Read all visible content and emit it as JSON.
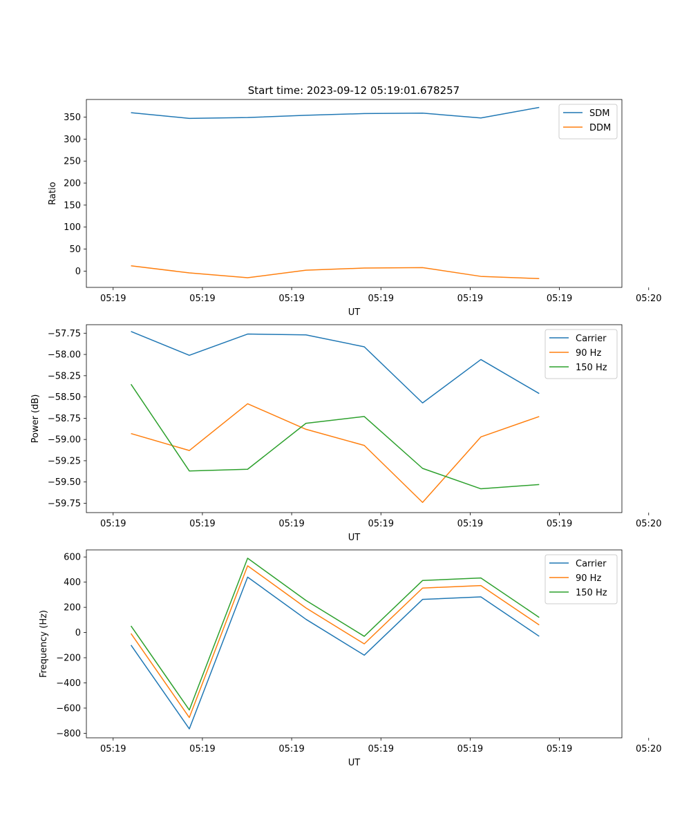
{
  "figure": {
    "title": "Start time: 2023-09-12 05:19:01.678257"
  },
  "colors": {
    "blue": "#1f77b4",
    "orange": "#ff7f0e",
    "green": "#2ca02c",
    "axis": "#000000",
    "legend_border": "#cccccc"
  },
  "chart_data": [
    {
      "type": "line",
      "title": "Start time: 2023-09-12 05:19:01.678257",
      "xlabel": "UT",
      "ylabel": "Ratio",
      "xlim": [
        -0.45,
        8.55
      ],
      "ylim": [
        -37,
        390
      ],
      "x": [
        0.3,
        1.28,
        2.26,
        3.24,
        4.22,
        5.2,
        6.18,
        7.16
      ],
      "xticks": [
        0,
        1.5,
        3,
        4.5,
        6,
        7.5,
        9
      ],
      "xtick_labels": [
        "05:19",
        "05:19",
        "05:19",
        "05:19",
        "05:19",
        "05:19",
        "05:20"
      ],
      "yticks": [
        0,
        50,
        100,
        150,
        200,
        250,
        300,
        350
      ],
      "ytick_labels": [
        "0",
        "50",
        "100",
        "150",
        "200",
        "250",
        "300",
        "350"
      ],
      "legend_position": "top-right",
      "series": [
        {
          "name": "SDM",
          "color": "#1f77b4",
          "values": [
            360,
            347,
            349,
            354,
            358,
            359,
            348,
            372
          ]
        },
        {
          "name": "DDM",
          "color": "#ff7f0e",
          "values": [
            12,
            -4,
            -15,
            2,
            7,
            8,
            -12,
            -17
          ]
        }
      ]
    },
    {
      "type": "line",
      "title": "",
      "xlabel": "UT",
      "ylabel": "Power (dB)",
      "xlim": [
        -0.45,
        8.55
      ],
      "ylim": [
        -59.86,
        -57.65
      ],
      "x": [
        0.3,
        1.28,
        2.26,
        3.24,
        4.22,
        5.2,
        6.18,
        7.16
      ],
      "xticks": [
        0,
        1.5,
        3,
        4.5,
        6,
        7.5,
        9
      ],
      "xtick_labels": [
        "05:19",
        "05:19",
        "05:19",
        "05:19",
        "05:19",
        "05:19",
        "05:20"
      ],
      "yticks": [
        -57.75,
        -58.0,
        -58.25,
        -58.5,
        -58.75,
        -59.0,
        -59.25,
        -59.5,
        -59.75
      ],
      "ytick_labels": [
        "−57.75",
        "−58.00",
        "−58.25",
        "−58.50",
        "−58.75",
        "−59.00",
        "−59.25",
        "−59.50",
        "−59.75"
      ],
      "legend_position": "top-right",
      "series": [
        {
          "name": "Carrier",
          "color": "#1f77b4",
          "values": [
            -57.73,
            -58.01,
            -57.76,
            -57.77,
            -57.91,
            -58.57,
            -58.06,
            -58.46
          ]
        },
        {
          "name": "90 Hz",
          "color": "#ff7f0e",
          "values": [
            -58.93,
            -59.13,
            -58.58,
            -58.88,
            -59.07,
            -59.74,
            -58.97,
            -58.73
          ]
        },
        {
          "name": "150 Hz",
          "color": "#2ca02c",
          "values": [
            -58.35,
            -59.37,
            -59.35,
            -58.81,
            -58.73,
            -59.34,
            -59.58,
            -59.53
          ]
        }
      ]
    },
    {
      "type": "line",
      "title": "",
      "xlabel": "UT",
      "ylabel": "Frequency (Hz)",
      "xlim": [
        -0.45,
        8.55
      ],
      "ylim": [
        -836,
        656
      ],
      "x": [
        0.3,
        1.28,
        2.26,
        3.24,
        4.22,
        5.2,
        6.18,
        7.16
      ],
      "xticks": [
        0,
        1.5,
        3,
        4.5,
        6,
        7.5,
        9
      ],
      "xtick_labels": [
        "05:19",
        "05:19",
        "05:19",
        "05:19",
        "05:19",
        "05:19",
        "05:20"
      ],
      "yticks": [
        -800,
        -600,
        -400,
        -200,
        0,
        200,
        400,
        600
      ],
      "ytick_labels": [
        "−800",
        "−600",
        "−400",
        "−200",
        "0",
        "200",
        "400",
        "600"
      ],
      "legend_position": "top-right",
      "series": [
        {
          "name": "Carrier",
          "color": "#1f77b4",
          "values": [
            -100,
            -765,
            440,
            105,
            -180,
            263,
            283,
            -30
          ]
        },
        {
          "name": "90 Hz",
          "color": "#ff7f0e",
          "values": [
            -8,
            -675,
            530,
            195,
            -90,
            353,
            373,
            60
          ]
        },
        {
          "name": "150 Hz",
          "color": "#2ca02c",
          "values": [
            52,
            -615,
            590,
            255,
            -30,
            413,
            433,
            120
          ]
        }
      ]
    }
  ]
}
